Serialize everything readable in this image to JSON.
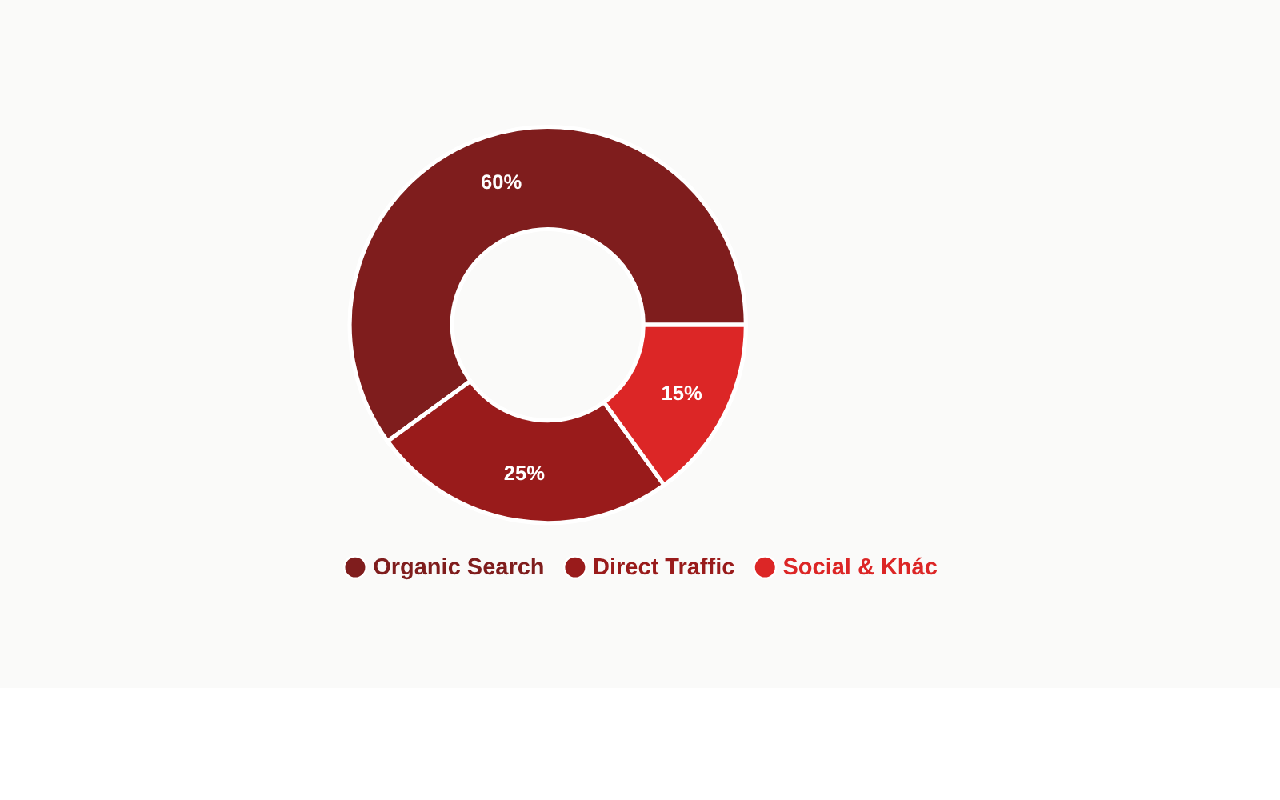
{
  "chart_data": {
    "type": "donut",
    "categories": [
      "Organic Search",
      "Direct Traffic",
      "Social & Khác"
    ],
    "values": [
      60,
      25,
      15
    ],
    "colors": [
      "#7f1d1d",
      "#991b1b",
      "#dc2626"
    ],
    "value_labels": [
      "60%",
      "25%",
      "15%"
    ],
    "legend": "bottom"
  }
}
